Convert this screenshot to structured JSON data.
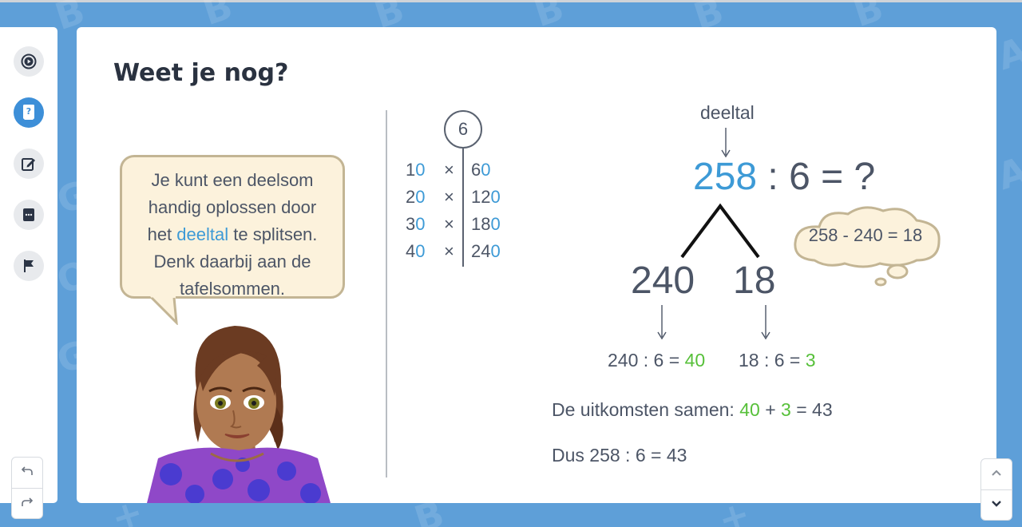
{
  "sidebar": {
    "items": [
      {
        "icon": "play-circle-icon",
        "active": false
      },
      {
        "icon": "book-question-icon",
        "active": true
      },
      {
        "icon": "edit-icon",
        "active": false
      },
      {
        "icon": "chat-dots-icon",
        "active": false
      },
      {
        "icon": "flag-icon",
        "active": false
      }
    ],
    "undo_icon": "undo-icon",
    "redo_icon": "redo-icon"
  },
  "main": {
    "title": "Weet je nog?",
    "bubble": {
      "line1": "Je kunt een deelsom",
      "line2": "handig oplossen door",
      "line3_pre": "het ",
      "line3_highlight": "deeltal",
      "line3_post": " te splitsen.",
      "line4": "Denk daarbij aan de",
      "line5": "tafelsommen."
    },
    "table": {
      "divisor": "6",
      "times_symbol": "×",
      "rows": [
        {
          "lhs_digit": "1",
          "lhs_zero": "0",
          "rhs_digits": "6",
          "rhs_zero": "0"
        },
        {
          "lhs_digit": "2",
          "lhs_zero": "0",
          "rhs_digits": "12",
          "rhs_zero": "0"
        },
        {
          "lhs_digit": "3",
          "lhs_zero": "0",
          "rhs_digits": "18",
          "rhs_zero": "0"
        },
        {
          "lhs_digit": "4",
          "lhs_zero": "0",
          "rhs_digits": "24",
          "rhs_zero": "0"
        }
      ]
    },
    "equation": {
      "label": "deeltal",
      "dividend": "258",
      "rest": " : 6 = ?",
      "part1": "240",
      "part2": "18",
      "thought": "258 - 240 = 18",
      "sub1_pre": "240 : 6 = ",
      "sub1_result": "40",
      "sub2_pre": "18 : 6 = ",
      "sub2_result": "3",
      "combine_pre": "De uitkomsten samen: ",
      "combine_a": "40",
      "combine_plus": " + ",
      "combine_b": "3",
      "combine_post": " = 43",
      "conclusion": "Dus 258 : 6 = 43"
    }
  },
  "nav": {
    "up_icon": "chevron-up-icon",
    "down_icon": "chevron-down-icon"
  },
  "colors": {
    "background": "#5e9fd8",
    "accent": "#3d9ad6",
    "green": "#57c03a",
    "text": "#4c5566",
    "title": "#2a3240"
  }
}
